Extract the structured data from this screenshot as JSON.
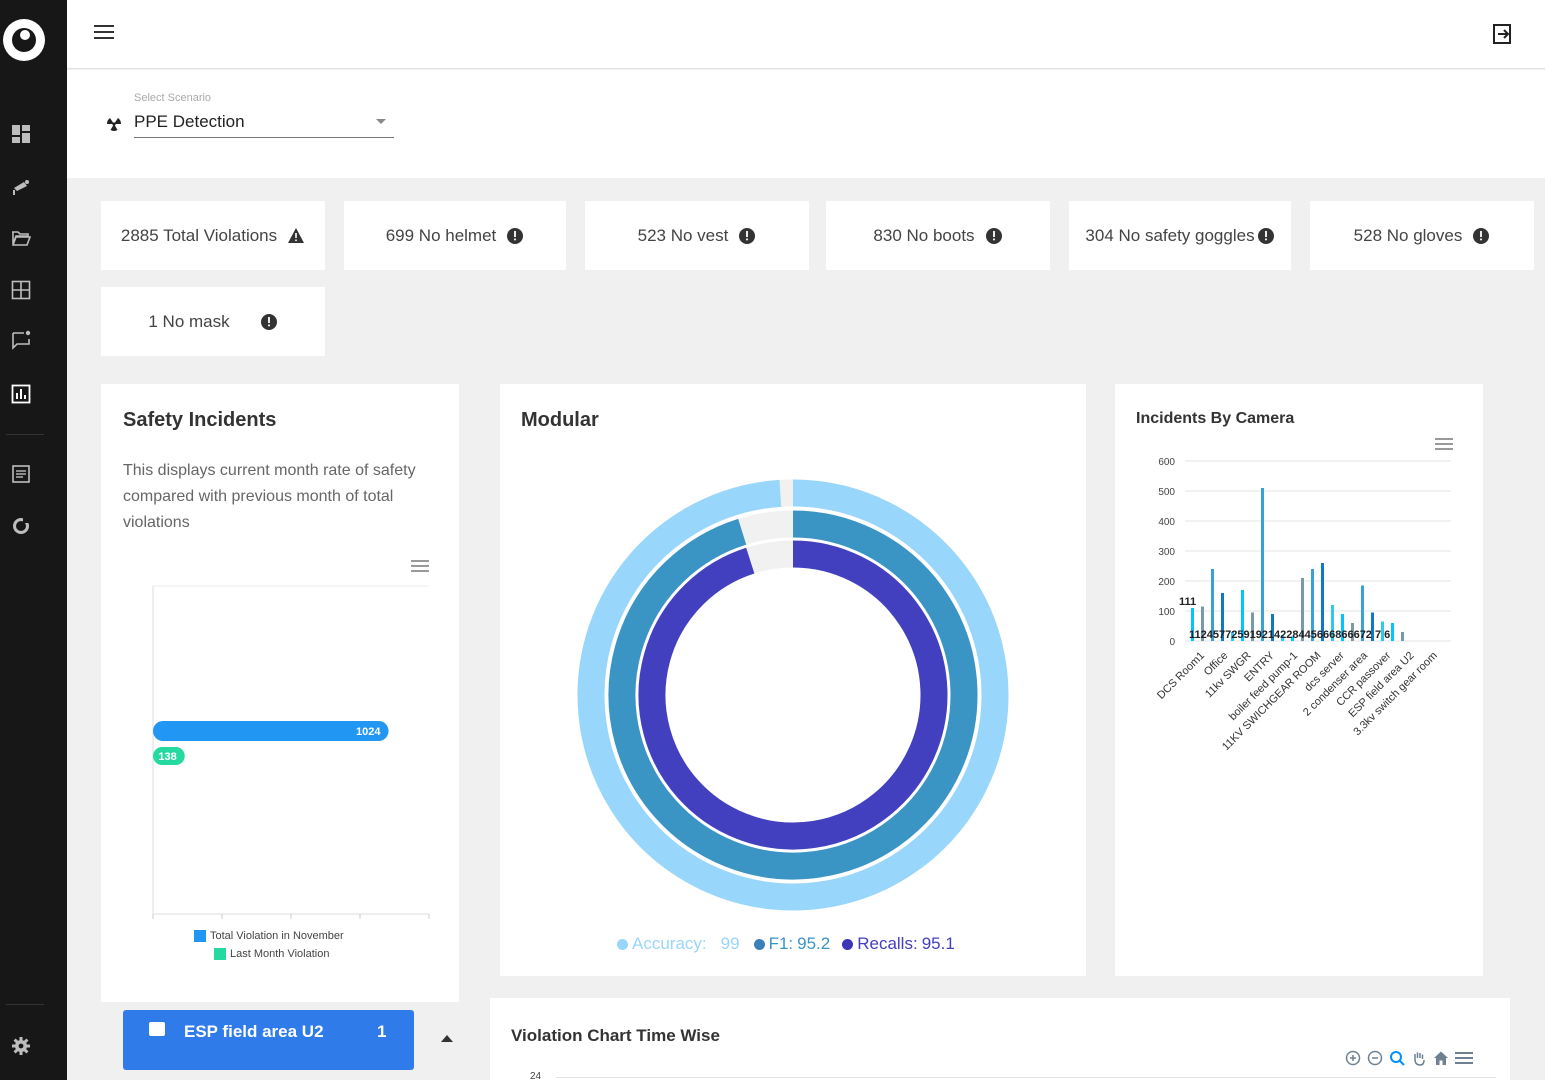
{
  "scenario": {
    "label": "Select Scenario",
    "value": "PPE Detection"
  },
  "stats": [
    {
      "text": "2885 Total Violations",
      "icon": "warning-icon"
    },
    {
      "text": "699 No helmet",
      "icon": "alert-circle-icon"
    },
    {
      "text": "523 No vest",
      "icon": "alert-circle-icon"
    },
    {
      "text": "830 No boots",
      "icon": "alert-circle-icon"
    },
    {
      "text": "304 No safety goggles",
      "icon": "alert-circle-icon"
    },
    {
      "text": "528 No gloves",
      "icon": "alert-circle-icon"
    },
    {
      "text": "1 No mask",
      "icon": "alert-circle-icon"
    }
  ],
  "safety": {
    "title": "Safety Incidents",
    "description": "This displays current month rate of safety compared with previous month of total violations",
    "legend": [
      "Total Violation in November",
      "Last Month Violation"
    ]
  },
  "modular": {
    "title": "Modular",
    "legend": [
      {
        "label": "Accuracy:",
        "value": "99"
      },
      {
        "label": "F1:",
        "value": "95.2"
      },
      {
        "label": "Recalls:",
        "value": "95.1"
      }
    ]
  },
  "camera": {
    "title": "Incidents By Camera",
    "top_label": "111",
    "bottom_labels": "112457725919214228445666866672 7 6"
  },
  "bottom_card": {
    "label": "ESP field area U2",
    "count": "1"
  },
  "timewise": {
    "title": "Violation Chart Time Wise",
    "y_top": "24"
  },
  "colors": {
    "accent": "#2196f3",
    "green": "#26d9a0",
    "light_blue": "#99d6fb",
    "mid_blue": "#3a95c5",
    "indigo": "#4340c0"
  },
  "chart_data": [
    {
      "type": "bar",
      "title": "Safety Incidents",
      "orientation": "horizontal",
      "series": [
        {
          "name": "Total Violation in November",
          "values": [
            1024
          ]
        },
        {
          "name": "Last Month Violation",
          "values": [
            138
          ]
        }
      ]
    },
    {
      "type": "pie",
      "title": "Modular",
      "subtype": "radial-bar",
      "series": [
        {
          "name": "Accuracy",
          "value": 99
        },
        {
          "name": "F1",
          "value": 95.2
        },
        {
          "name": "Recalls",
          "value": 95.1
        }
      ]
    },
    {
      "type": "bar",
      "title": "Incidents By Camera",
      "categories": [
        "DCS Room1",
        "Office",
        "11kv SWGR",
        "ENTRY",
        "boiler feed pump-1",
        "11KV SWICHGEAR ROOM",
        "dcs server",
        "2 condenser area",
        "CCR passover",
        "ESP field area U2",
        "3.3kv switch gear room"
      ],
      "ylim": [
        0,
        600
      ],
      "yticks": [
        0,
        100,
        200,
        300,
        400,
        500,
        600
      ]
    }
  ]
}
